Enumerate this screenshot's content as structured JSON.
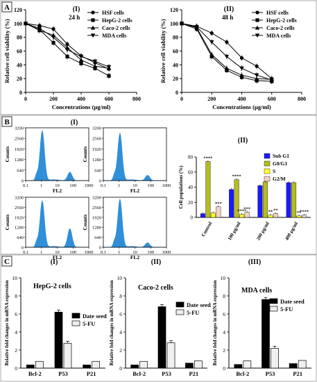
{
  "panel_letters": [
    "A",
    "B",
    "C"
  ],
  "chart_data": [
    {
      "id": "A-I",
      "type": "line",
      "panel_label": "(I)",
      "subtitle": "24 h",
      "xlabel": "Concentrations (µg/ml)",
      "ylabel": "Relative cell viability (%)",
      "xlim": [
        0,
        800
      ],
      "ylim": [
        0,
        120
      ],
      "xticks": [
        0,
        200,
        400,
        600,
        800
      ],
      "yticks": [
        0,
        20,
        40,
        60,
        80,
        100,
        120
      ],
      "legend_position": "top-right",
      "x": [
        0,
        100,
        200,
        300,
        400,
        500,
        600
      ],
      "series": [
        {
          "name": "HSF cells",
          "marker": "circle",
          "values": [
            100,
            97,
            92,
            70,
            53,
            43,
            34
          ]
        },
        {
          "name": "HepG-2 cells",
          "marker": "square",
          "values": [
            100,
            91,
            72,
            52,
            42,
            35,
            24
          ]
        },
        {
          "name": "Caco-2 cells",
          "marker": "triangle",
          "values": [
            100,
            90,
            83,
            65,
            47,
            38,
            35
          ]
        },
        {
          "name": "MDA cells",
          "marker": "tri-down",
          "values": [
            100,
            93,
            80,
            62,
            52,
            45,
            37
          ]
        }
      ]
    },
    {
      "id": "A-II",
      "type": "line",
      "panel_label": "(II)",
      "subtitle": "48 h",
      "xlabel": "Concentrations (µg/ml)",
      "ylabel": "Relative cell viability (%)",
      "xlim": [
        0,
        800
      ],
      "ylim": [
        0,
        120
      ],
      "xticks": [
        0,
        200,
        400,
        600,
        800
      ],
      "yticks": [
        0,
        20,
        40,
        60,
        80,
        100,
        120
      ],
      "legend_position": "top-right",
      "x": [
        0,
        100,
        200,
        300,
        400,
        500,
        600
      ],
      "series": [
        {
          "name": "HSF cells",
          "marker": "circle",
          "values": [
            100,
            96,
            86,
            73,
            50,
            38,
            20
          ]
        },
        {
          "name": "HepG-2 cells",
          "marker": "square",
          "values": [
            100,
            92,
            52,
            32,
            22,
            17,
            16
          ]
        },
        {
          "name": "Caco-2 cells",
          "marker": "triangle",
          "values": [
            100,
            94,
            55,
            35,
            25,
            20,
            19
          ]
        },
        {
          "name": "MDA cells",
          "marker": "tri-down",
          "values": [
            100,
            95,
            73,
            52,
            35,
            25,
            18
          ]
        }
      ]
    },
    {
      "id": "B-I",
      "type": "area",
      "panel_label": "(I)",
      "color": "#2f8fd8",
      "histograms": [
        {
          "xlabel": "FL2",
          "ylabel": "Counts",
          "yticks": [
            0,
            640,
            1280,
            1920,
            2560,
            3200
          ],
          "xtick_labels": [
            "0.1",
            "1",
            "10",
            "100",
            "1000"
          ],
          "main_peak_height": 3050,
          "secondary_peak_height": 520
        },
        {
          "xlabel": "FL2",
          "ylabel": "Counts",
          "yticks": [
            0,
            640,
            1280,
            1920,
            2560,
            3200
          ],
          "xtick_labels": [
            "0.1",
            "1",
            "10",
            "100",
            "1000"
          ],
          "main_peak_height": 2900,
          "secondary_peak_height": 330
        },
        {
          "xlabel": "FL2",
          "ylabel": "Counts",
          "yticks": [
            0,
            640,
            1280,
            1920,
            2560,
            3200
          ],
          "xtick_labels": [
            "0.1",
            "1",
            "10",
            "100",
            "1000"
          ],
          "main_peak_height": 3000,
          "secondary_peak_height": 1200
        },
        {
          "xlabel": "FL2",
          "ylabel": "Counts",
          "yticks": [
            0,
            640,
            1280,
            1920,
            2560,
            3200
          ],
          "xtick_labels": [
            "0.1",
            "1",
            "10",
            "100",
            "1000"
          ],
          "main_peak_height": 3100,
          "secondary_peak_height": 300
        }
      ]
    },
    {
      "id": "B-II",
      "type": "bar",
      "panel_label": "(II)",
      "ylabel": "Cell populations (%)",
      "ylim": [
        0,
        80
      ],
      "yticks": [
        0,
        20,
        40,
        60,
        80
      ],
      "legend_position": "top-right",
      "categories": [
        "Control",
        "100 µg/ml",
        "200 µg/ml",
        "400 µg/ml"
      ],
      "series": [
        {
          "name": "Sub G1",
          "color": "#1a1aff",
          "values": [
            5,
            37,
            42,
            46
          ],
          "sig": [
            "",
            "",
            "",
            ""
          ]
        },
        {
          "name": "G0/G1",
          "color": "#b5bd1f",
          "values": [
            74,
            50,
            47,
            46
          ],
          "sig": [
            "****",
            "****",
            "*",
            ""
          ]
        },
        {
          "name": "S",
          "color": "#ffff26",
          "values": [
            6,
            4,
            3,
            2
          ],
          "sig": [
            "",
            "****",
            "**",
            "**"
          ]
        },
        {
          "name": "G2/M",
          "color": "#f3d2c2",
          "values": [
            14,
            7,
            5,
            3
          ],
          "sig": [
            "***",
            "***",
            "**",
            "****"
          ]
        }
      ]
    },
    {
      "id": "C-I",
      "type": "bar",
      "panel_label": "(I)",
      "title": "HepG-2 cells",
      "ylabel": "Relative fold changes in mRNA expression",
      "ylim": [
        0,
        10
      ],
      "yticks": [
        0,
        2,
        4,
        6,
        8,
        10
      ],
      "legend_position": "top-right",
      "categories": [
        "Bcl-2",
        "P53",
        "P21"
      ],
      "series": [
        {
          "name": "Date seed",
          "color": "#000000",
          "values": [
            0.35,
            6.2,
            0.35
          ]
        },
        {
          "name": "5-FU",
          "color": "#f0f0f0",
          "values": [
            0.75,
            2.75,
            0.75
          ]
        }
      ]
    },
    {
      "id": "C-II",
      "type": "bar",
      "panel_label": "(II)",
      "title": "Caco-2 cells",
      "ylabel": "Relative fold changes in mRNA expression",
      "ylim": [
        0,
        10
      ],
      "yticks": [
        0,
        2,
        4,
        6,
        8,
        10
      ],
      "legend_position": "top-right",
      "categories": [
        "Bcl-2",
        "P53",
        "P21"
      ],
      "series": [
        {
          "name": "Date seed",
          "color": "#000000",
          "values": [
            0.35,
            6.8,
            0.55
          ]
        },
        {
          "name": "5-FU",
          "color": "#f0f0f0",
          "values": [
            0.75,
            2.8,
            0.8
          ]
        }
      ]
    },
    {
      "id": "C-III",
      "type": "bar",
      "panel_label": "(III)",
      "title": "MDA cells",
      "ylabel": "Relative fold changes in mRNA expression",
      "ylim": [
        0,
        10
      ],
      "yticks": [
        0,
        2,
        4,
        6,
        8,
        10
      ],
      "legend_position": "top-right",
      "categories": [
        "Bcl-2",
        "P53",
        "P21"
      ],
      "series": [
        {
          "name": "Date seed",
          "color": "#000000",
          "values": [
            0.4,
            7.6,
            0.5
          ]
        },
        {
          "name": "5-FU",
          "color": "#f0f0f0",
          "values": [
            0.8,
            2.2,
            0.85
          ]
        }
      ]
    }
  ]
}
